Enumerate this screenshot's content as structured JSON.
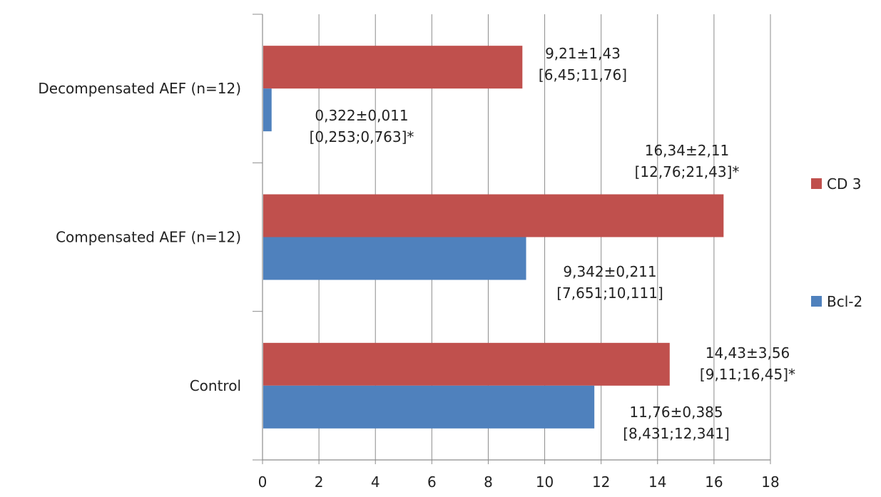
{
  "chart_data": {
    "type": "bar",
    "orientation": "horizontal",
    "categories": [
      "Control",
      "Compensated AEF (n=12)",
      "Decompensated AEF (n=12)"
    ],
    "series": [
      {
        "name": "CD 3",
        "color": "#c0504d",
        "values": [
          14.43,
          16.34,
          9.21
        ],
        "labels": [
          [
            "14,43±3,56",
            "[9,11;16,45]*"
          ],
          [
            "16,34±2,11",
            "[12,76;21,43]*"
          ],
          [
            "9,21±1,43",
            "[6,45;11,76]"
          ]
        ]
      },
      {
        "name": "Bcl-2",
        "color": "#4f81bd",
        "values": [
          11.76,
          9.342,
          0.322
        ],
        "labels": [
          [
            "11,76±0,385",
            "[8,431;12,341]"
          ],
          [
            "9,342±0,211",
            "[7,651;10,111]"
          ],
          [
            "0,322±0,011",
            "[0,253;0,763]*"
          ]
        ]
      }
    ],
    "x_ticks": [
      "0",
      "2",
      "4",
      "6",
      "8",
      "10",
      "12",
      "14",
      "16",
      "18"
    ],
    "xlim": [
      0,
      18
    ],
    "grid": true,
    "legend_position": "right"
  }
}
